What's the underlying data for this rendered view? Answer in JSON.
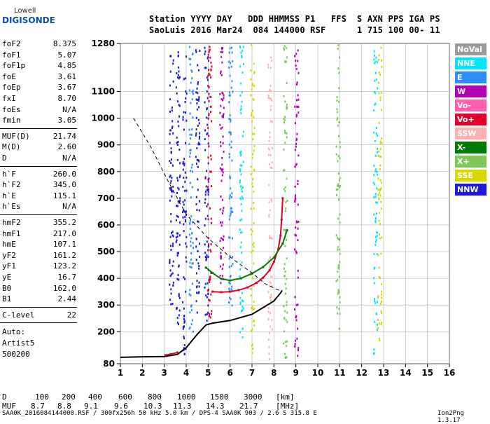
{
  "logo": {
    "line1": "Lowell",
    "line2": "DIGISONDE"
  },
  "header": {
    "row1": "Station YYYY DAY   DDD HHMMSS P1   FFS  S AXN PPS IGA PS",
    "row2": "SaoLuis 2016 Mar24  084 144000 RSF      1 715 100 00- 11"
  },
  "params": {
    "group1": [
      {
        "label": "foF2",
        "value": "8.375"
      },
      {
        "label": "foF1",
        "value": "5.07"
      },
      {
        "label": "foF1p",
        "value": "4.85"
      },
      {
        "label": "foE",
        "value": "3.61"
      },
      {
        "label": "foEp",
        "value": "3.67"
      },
      {
        "label": "fxI",
        "value": "8.70"
      },
      {
        "label": "foEs",
        "value": "N/A"
      },
      {
        "label": "fmin",
        "value": "3.05"
      }
    ],
    "group2": [
      {
        "label": "MUF(D)",
        "value": "21.74"
      },
      {
        "label": "M(D)",
        "value": "2.60"
      },
      {
        "label": "D",
        "value": "N/A"
      }
    ],
    "group3": [
      {
        "label": "h`F",
        "value": "260.0"
      },
      {
        "label": "h`F2",
        "value": "345.0"
      },
      {
        "label": "h`E",
        "value": "115.1"
      },
      {
        "label": "h`Es",
        "value": "N/A"
      }
    ],
    "group4": [
      {
        "label": "hmF2",
        "value": "355.2"
      },
      {
        "label": "hmF1",
        "value": "217.0"
      },
      {
        "label": "hmE",
        "value": "107.1"
      },
      {
        "label": "yF2",
        "value": "161.2"
      },
      {
        "label": "yF1",
        "value": "123.2"
      },
      {
        "label": "yE",
        "value": "16.7"
      },
      {
        "label": "B0",
        "value": "162.0"
      },
      {
        "label": "B1",
        "value": "2.44"
      }
    ],
    "group5": [
      {
        "label": "C-level",
        "value": "22"
      }
    ],
    "auto": [
      "Auto:",
      "Artist5",
      "500200"
    ]
  },
  "legend": [
    {
      "label": "NoVal",
      "color": "#9a9a9a"
    },
    {
      "label": "NNE",
      "color": "#00e5ff"
    },
    {
      "label": "E",
      "color": "#2e8cff"
    },
    {
      "label": "W",
      "color": "#b000b0"
    },
    {
      "label": "Vo-",
      "color": "#ff5fb0"
    },
    {
      "label": "Vo+",
      "color": "#e0002a"
    },
    {
      "label": "SSW",
      "color": "#ffb0b0"
    },
    {
      "label": "X-",
      "color": "#007a00"
    },
    {
      "label": "X+",
      "color": "#7ec85a"
    },
    {
      "label": "SSE",
      "color": "#d8d800"
    },
    {
      "label": "NNW",
      "color": "#1a1ad8"
    }
  ],
  "muf_table": {
    "d_label": "D",
    "d_values": [
      "100",
      "200",
      "400",
      "600",
      "800",
      "1000",
      "1500",
      "3000"
    ],
    "d_unit": "[km]",
    "muf_label": "MUF",
    "muf_values": [
      "8.7",
      "8.8",
      "9.1",
      "9.6",
      "10.3",
      "11.3",
      "14.3",
      "21.7"
    ],
    "muf_unit": "[MHz]"
  },
  "footer": "SAA0K_2016084144000.RSF / 300fx256h 50 kHz 5.0 km / DPS-4 SAA0K 903 / 2.6 S 315.8 E",
  "version": "Ion2Png 1.3.17",
  "chart_data": {
    "type": "scatter",
    "xlim": [
      1,
      16
    ],
    "ylim": [
      80,
      1280
    ],
    "x_ticks": [
      1,
      2,
      3,
      4,
      5,
      6,
      7,
      8,
      9,
      10,
      11,
      12,
      13,
      14,
      15,
      16
    ],
    "y_ticks": [
      80,
      200,
      300,
      400,
      500,
      600,
      700,
      800,
      900,
      1000,
      1100,
      1280
    ],
    "x_tick_labels": [
      "1",
      "2",
      "3",
      "4",
      "5",
      "6",
      "7",
      "8",
      "9",
      "10",
      "11",
      "12",
      "13",
      "14",
      "15",
      "16"
    ],
    "y_tick_labels": [
      "80",
      "200",
      "300",
      "400",
      "500",
      "600",
      "700",
      "800",
      "900",
      "1000",
      "1100",
      "1280"
    ],
    "grid": true,
    "traces": [
      {
        "name": "O-trace",
        "color": "#e0002a",
        "points": [
          [
            5.2,
            350
          ],
          [
            5.6,
            348
          ],
          [
            6.0,
            350
          ],
          [
            6.4,
            356
          ],
          [
            6.8,
            366
          ],
          [
            7.2,
            383
          ],
          [
            7.5,
            402
          ],
          [
            7.8,
            430
          ],
          [
            8.0,
            462
          ],
          [
            8.2,
            510
          ],
          [
            8.3,
            560
          ],
          [
            8.35,
            620
          ],
          [
            8.4,
            700
          ]
        ]
      },
      {
        "name": "X-trace",
        "color": "#007a00",
        "points": [
          [
            4.9,
            440
          ],
          [
            5.2,
            420
          ],
          [
            5.6,
            398
          ],
          [
            6.0,
            392
          ],
          [
            6.5,
            400
          ],
          [
            7.0,
            418
          ],
          [
            7.5,
            442
          ],
          [
            8.0,
            478
          ],
          [
            8.4,
            530
          ],
          [
            8.6,
            580
          ]
        ]
      },
      {
        "name": "true-height",
        "color": "#000000",
        "points": [
          [
            1.0,
            104
          ],
          [
            2.0,
            106
          ],
          [
            3.0,
            107
          ],
          [
            3.6,
            115
          ],
          [
            4.0,
            140
          ],
          [
            4.5,
            190
          ],
          [
            4.9,
            225
          ],
          [
            5.2,
            232
          ],
          [
            6.0,
            242
          ],
          [
            7.0,
            265
          ],
          [
            7.5,
            290
          ],
          [
            8.0,
            315
          ],
          [
            8.3,
            345
          ],
          [
            8.375,
            355
          ]
        ]
      },
      {
        "name": "electron-density",
        "color": "#000000",
        "dashed": true,
        "points": [
          [
            1.6,
            1000
          ],
          [
            2.4,
            890
          ],
          [
            3.2,
            760
          ],
          [
            4.0,
            640
          ],
          [
            5.0,
            550
          ],
          [
            6.0,
            480
          ],
          [
            7.0,
            420
          ],
          [
            7.6,
            380
          ],
          [
            8.2,
            356
          ],
          [
            8.375,
            355
          ]
        ]
      },
      {
        "name": "E-trace",
        "color": "#e0002a",
        "points": [
          [
            3.05,
            112
          ],
          [
            3.3,
            116
          ],
          [
            3.6,
            122
          ]
        ]
      }
    ],
    "vertical_bands": [
      {
        "x": 3.3,
        "y0": 300,
        "y1": 1280,
        "color": "#1a1ad8"
      },
      {
        "x": 3.6,
        "y0": 200,
        "y1": 1280,
        "color": "#1a1ad8"
      },
      {
        "x": 3.9,
        "y0": 120,
        "y1": 1280,
        "color": "#1a1ad8"
      },
      {
        "x": 4.2,
        "y0": 200,
        "y1": 1280,
        "color": "#2e8cff"
      },
      {
        "x": 4.5,
        "y0": 250,
        "y1": 1280,
        "color": "#1a1ad8"
      },
      {
        "x": 4.9,
        "y0": 240,
        "y1": 1280,
        "color": "#1a1ad8"
      },
      {
        "x": 5.05,
        "y0": 250,
        "y1": 1280,
        "color": "#e0002a"
      },
      {
        "x": 5.6,
        "y0": 380,
        "y1": 1280,
        "color": "#b000b0"
      },
      {
        "x": 6.0,
        "y0": 300,
        "y1": 1280,
        "color": "#2e8cff"
      },
      {
        "x": 6.5,
        "y0": 150,
        "y1": 1280,
        "color": "#00e5ff"
      },
      {
        "x": 7.0,
        "y0": 100,
        "y1": 1280,
        "color": "#d8d800"
      },
      {
        "x": 7.8,
        "y0": 100,
        "y1": 1280,
        "color": "#ffb0b0"
      },
      {
        "x": 8.5,
        "y0": 100,
        "y1": 1280,
        "color": "#7ec85a"
      },
      {
        "x": 9.0,
        "y0": 100,
        "y1": 1280,
        "color": "#b000b0"
      },
      {
        "x": 10.9,
        "y0": 200,
        "y1": 1280,
        "color": "#7ec85a"
      },
      {
        "x": 12.6,
        "y0": 100,
        "y1": 1280,
        "color": "#00e5ff"
      },
      {
        "x": 12.8,
        "y0": 150,
        "y1": 1280,
        "color": "#d8d800"
      }
    ]
  }
}
